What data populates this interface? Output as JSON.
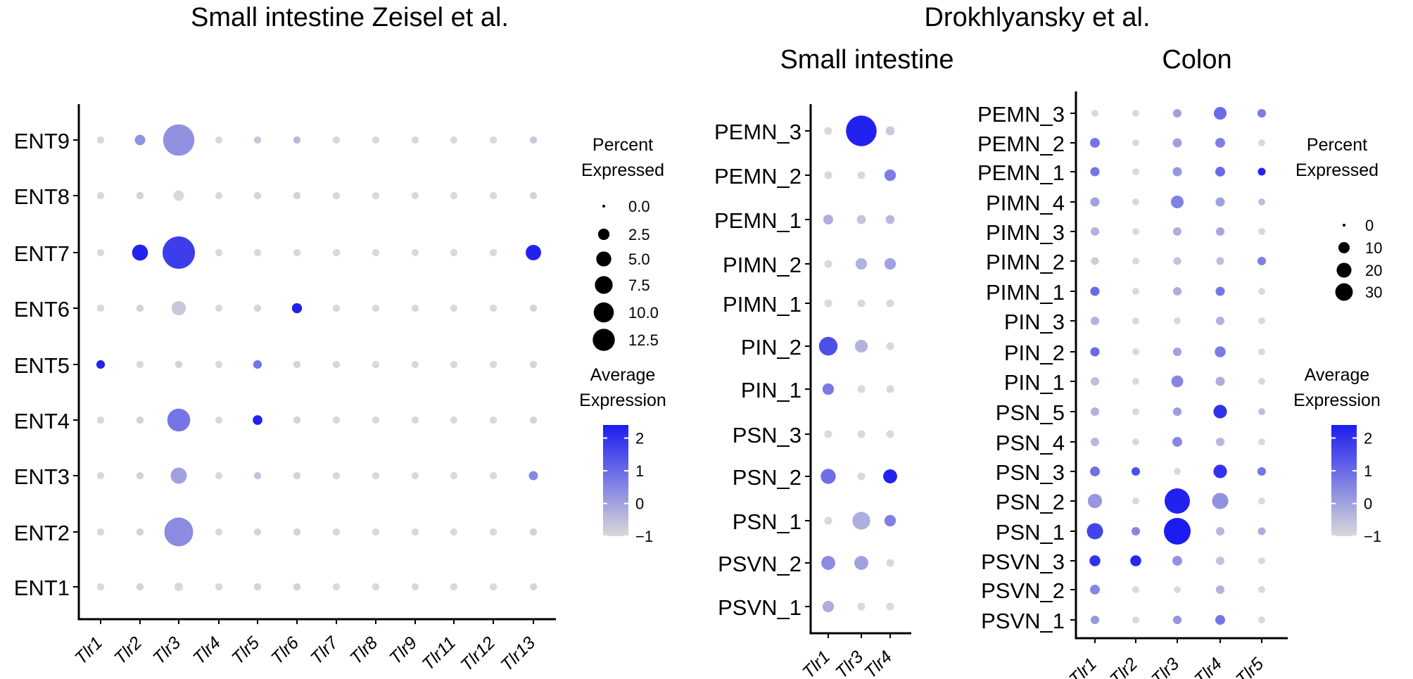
{
  "figure": {
    "title_left": "Small intestine Zeisel et al.",
    "title_right": "Drokhlyansky et al."
  },
  "chart_data": [
    {
      "type": "dot",
      "id": "zeisel",
      "title": "Small intestine Zeisel et al.",
      "x_categories": [
        "Tlr1",
        "Tlr2",
        "Tlr3",
        "Tlr4",
        "Tlr5",
        "Tlr6",
        "Tlr7",
        "Tlr8",
        "Tlr9",
        "Tlr11",
        "Tlr12",
        "Tlr13"
      ],
      "y_categories": [
        "ENT9",
        "ENT8",
        "ENT7",
        "ENT6",
        "ENT5",
        "ENT4",
        "ENT3",
        "ENT2",
        "ENT1"
      ],
      "pct_expressed": [
        [
          0.3,
          0.9,
          12.3,
          0.3,
          0.3,
          0.3,
          0.3,
          0.3,
          0.3,
          0.3,
          0.3,
          0.3
        ],
        [
          0.3,
          0.3,
          0.9,
          0.3,
          0.3,
          0.3,
          0.3,
          0.3,
          0.3,
          0.3,
          0.3,
          0.3
        ],
        [
          0.3,
          2.6,
          13.2,
          0.3,
          0.3,
          0.3,
          0.3,
          0.3,
          0.3,
          0.3,
          0.3,
          2.4
        ],
        [
          0.3,
          0.3,
          2.0,
          0.3,
          0.3,
          0.8,
          0.3,
          0.3,
          0.3,
          0.3,
          0.3,
          0.3
        ],
        [
          0.5,
          0.3,
          0.3,
          0.3,
          0.5,
          0.3,
          0.3,
          0.3,
          0.3,
          0.3,
          0.3,
          0.3
        ],
        [
          0.3,
          0.3,
          6.1,
          0.3,
          0.7,
          0.3,
          0.3,
          0.3,
          0.3,
          0.3,
          0.3,
          0.3
        ],
        [
          0.3,
          0.3,
          2.7,
          0.3,
          0.3,
          0.3,
          0.3,
          0.3,
          0.3,
          0.3,
          0.3,
          0.6
        ],
        [
          0.3,
          0.3,
          10.2,
          0.3,
          0.3,
          0.3,
          0.3,
          0.3,
          0.3,
          0.3,
          0.3,
          0.3
        ],
        [
          0.3,
          0.3,
          0.5,
          0.3,
          0.3,
          0.3,
          0.3,
          0.3,
          0.3,
          0.3,
          0.3,
          0.3
        ]
      ],
      "avg_expression": [
        [
          -1,
          0.3,
          0.3,
          -1,
          -0.7,
          -0.4,
          -1,
          -1,
          -1,
          -1,
          -1,
          -0.7
        ],
        [
          -1,
          -0.9,
          -1,
          -1,
          -0.9,
          -0.9,
          -1,
          -1,
          -1,
          -1,
          -1,
          -0.9
        ],
        [
          -1,
          2.3,
          1.8,
          -1,
          -1,
          -1,
          -1,
          -1,
          -1,
          -1,
          -1,
          2.3
        ],
        [
          -1,
          -0.9,
          -0.7,
          -1,
          -0.9,
          2.3,
          -1,
          -1,
          -1,
          -1,
          -1,
          -0.9
        ],
        [
          2.3,
          -1,
          -0.9,
          -1,
          0.8,
          -0.9,
          -1,
          -1,
          -1,
          -1,
          -1,
          -0.9
        ],
        [
          -1,
          -0.9,
          0.8,
          -1,
          2.3,
          -0.9,
          -1,
          -1,
          -1,
          -1,
          -1,
          -0.9
        ],
        [
          -1,
          -0.9,
          0,
          -1,
          -0.6,
          -0.9,
          -1,
          -1,
          -1,
          -1,
          -1,
          0.5
        ],
        [
          -1,
          -0.9,
          0.4,
          -1,
          -0.9,
          -0.9,
          -1,
          -1,
          -1,
          -1,
          -1,
          -0.9
        ],
        [
          -1,
          -0.9,
          -1,
          -1,
          -0.9,
          -0.9,
          -1,
          -1,
          -1,
          -1,
          -1,
          -0.9
        ]
      ],
      "legend": {
        "size_title": [
          "Percent",
          "Expressed"
        ],
        "size_values": [
          "0.0",
          "2.5",
          "5.0",
          "7.5",
          "10.0",
          "12.5"
        ],
        "color_title": [
          "Average",
          "Expression"
        ],
        "color_ticks": [
          "2",
          "1",
          "0",
          "−1"
        ],
        "color_range": [
          -1,
          2.4
        ],
        "size_max": 13.2
      }
    },
    {
      "type": "dot",
      "id": "drok-si",
      "title": "Small intestine",
      "x_categories": [
        "Tlr1",
        "Tlr3",
        "Tlr4"
      ],
      "y_categories": [
        "PEMN_3",
        "PEMN_2",
        "PEMN_1",
        "PIMN_2",
        "PIMN_1",
        "PIN_2",
        "PIN_1",
        "PSN_3",
        "PSN_2",
        "PSN_1",
        "PSVN_2",
        "PSVN_1"
      ],
      "pct_expressed": [
        [
          1,
          31,
          1.5
        ],
        [
          1,
          1,
          3
        ],
        [
          2,
          1.5,
          1.5
        ],
        [
          1,
          3,
          3
        ],
        [
          1,
          1,
          1
        ],
        [
          10,
          4,
          1
        ],
        [
          3,
          1,
          1
        ],
        [
          1,
          1,
          1
        ],
        [
          6,
          1,
          5
        ],
        [
          1,
          9,
          3
        ],
        [
          5,
          5,
          1
        ],
        [
          3,
          1,
          1
        ]
      ],
      "avg_expression": [
        [
          -1,
          2.3,
          -0.7
        ],
        [
          -1,
          -1,
          0.7
        ],
        [
          -0.2,
          -0.6,
          -0.4
        ],
        [
          -1,
          -0.3,
          0
        ],
        [
          -1,
          -1,
          -1
        ],
        [
          1.5,
          -0.3,
          -1
        ],
        [
          0.7,
          -1,
          -1
        ],
        [
          -1,
          -1,
          -1
        ],
        [
          0.9,
          -1,
          2.3
        ],
        [
          -1,
          -0.2,
          0.6
        ],
        [
          0.4,
          0,
          -1
        ],
        [
          -0.2,
          -1,
          -1
        ]
      ],
      "legend": null
    },
    {
      "type": "dot",
      "id": "drok-colon",
      "title": "Colon",
      "x_categories": [
        "Tlr1",
        "Tlr2",
        "Tlr3",
        "Tlr4",
        "Tlr5"
      ],
      "y_categories": [
        "PEMN_3",
        "PEMN_2",
        "PEMN_1",
        "PIMN_4",
        "PIMN_3",
        "PIMN_2",
        "PIMN_1",
        "PIN_3",
        "PIN_2",
        "PIN_1",
        "PSN_5",
        "PSN_4",
        "PSN_3",
        "PSN_2",
        "PSN_1",
        "PSVN_3",
        "PSVN_2",
        "PSVN_1"
      ],
      "pct_expressed": [
        [
          1,
          1,
          2,
          6,
          2
        ],
        [
          3,
          1,
          2.5,
          3,
          1
        ],
        [
          2.5,
          1,
          2.5,
          3,
          1.5
        ],
        [
          2.5,
          1,
          6,
          2.5,
          1
        ],
        [
          2,
          1,
          2,
          2,
          1
        ],
        [
          1.5,
          1,
          1.5,
          1.5,
          2
        ],
        [
          2.5,
          1,
          2,
          2.5,
          1
        ],
        [
          2,
          1,
          1,
          2,
          1
        ],
        [
          2.5,
          1,
          2,
          4,
          1
        ],
        [
          2,
          1,
          5,
          2.5,
          1
        ],
        [
          2,
          1,
          2,
          7,
          1
        ],
        [
          2,
          1,
          3,
          2,
          1
        ],
        [
          3,
          2,
          1,
          7,
          2
        ],
        [
          8,
          1,
          31,
          11,
          1
        ],
        [
          11,
          2,
          35,
          2,
          1.5
        ],
        [
          4,
          4,
          3,
          2,
          1
        ],
        [
          3,
          1,
          1,
          2,
          1
        ],
        [
          2,
          1,
          2,
          3,
          1
        ]
      ],
      "avg_expression": [
        [
          -1,
          -1,
          0,
          1,
          0.7
        ],
        [
          0.8,
          -1,
          0,
          0.6,
          -1
        ],
        [
          0.8,
          -1,
          0.2,
          1,
          2.3
        ],
        [
          0,
          -1,
          0.6,
          0,
          -0.5
        ],
        [
          -0.3,
          -1,
          -0.2,
          -0.1,
          -1
        ],
        [
          -0.8,
          -1,
          -0.6,
          -0.5,
          0.6
        ],
        [
          1,
          -1,
          -0.2,
          0.8,
          -1
        ],
        [
          -0.3,
          -1,
          -1,
          -0.3,
          -1
        ],
        [
          1,
          -1,
          0,
          0.7,
          -1
        ],
        [
          -0.5,
          -1,
          0.5,
          -0.2,
          -1
        ],
        [
          -0.3,
          -1,
          0.1,
          2,
          -0.5
        ],
        [
          -0.4,
          -1,
          0.5,
          -0.4,
          -1
        ],
        [
          0.9,
          1.5,
          -1,
          2,
          0.8
        ],
        [
          0.2,
          -1,
          2.3,
          0.3,
          -1
        ],
        [
          1.7,
          0.5,
          2.4,
          -0.4,
          -0.2
        ],
        [
          2,
          2.2,
          0.3,
          -0.6,
          -1
        ],
        [
          0.5,
          -1,
          -1,
          -0.3,
          -1
        ],
        [
          0.2,
          -1,
          0.2,
          0.8,
          -1
        ]
      ],
      "legend": {
        "size_title": [
          "Percent",
          "Expressed"
        ],
        "size_values": [
          "0",
          "10",
          "20",
          "30"
        ],
        "color_title": [
          "Average",
          "Expression"
        ],
        "color_ticks": [
          "2",
          "1",
          "0",
          "−1"
        ],
        "color_range": [
          -1,
          2.4
        ],
        "size_max": 35
      }
    }
  ]
}
